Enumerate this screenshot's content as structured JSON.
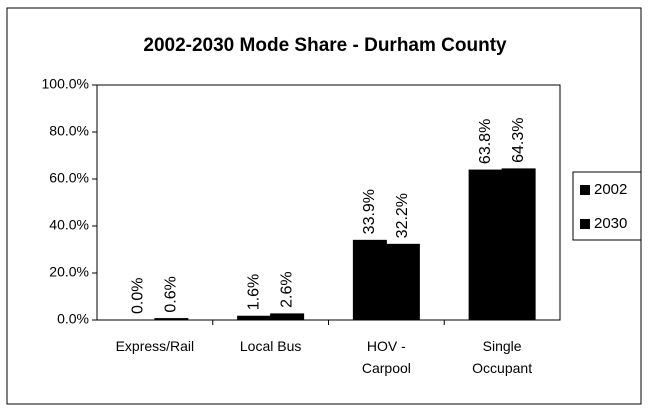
{
  "chart_data": {
    "type": "bar",
    "title": "2002-2030 Mode Share - Durham County",
    "categories": [
      "Express/Rail",
      "Local Bus",
      "HOV - Carpool",
      "Single Occupant"
    ],
    "series": [
      {
        "name": "2002",
        "color": "#000000",
        "values": [
          0.0,
          1.6,
          33.9,
          63.8
        ],
        "value_labels": [
          "0.0%",
          "1.6%",
          "33.9%",
          "63.8%"
        ]
      },
      {
        "name": "2030",
        "color": "#000000",
        "values": [
          0.6,
          2.6,
          32.2,
          64.3
        ],
        "value_labels": [
          "0.6%",
          "2.6%",
          "32.2%",
          "64.3%"
        ]
      }
    ],
    "ylim": [
      0,
      100
    ],
    "yticks": [
      {
        "value": 0,
        "label": "0.0%"
      },
      {
        "value": 20,
        "label": "20.0%"
      },
      {
        "value": 40,
        "label": "40.0%"
      },
      {
        "value": 60,
        "label": "60.0%"
      },
      {
        "value": 80,
        "label": "80.0%"
      },
      {
        "value": 100,
        "label": "100.0%"
      }
    ],
    "legend": "right",
    "grid": false
  }
}
